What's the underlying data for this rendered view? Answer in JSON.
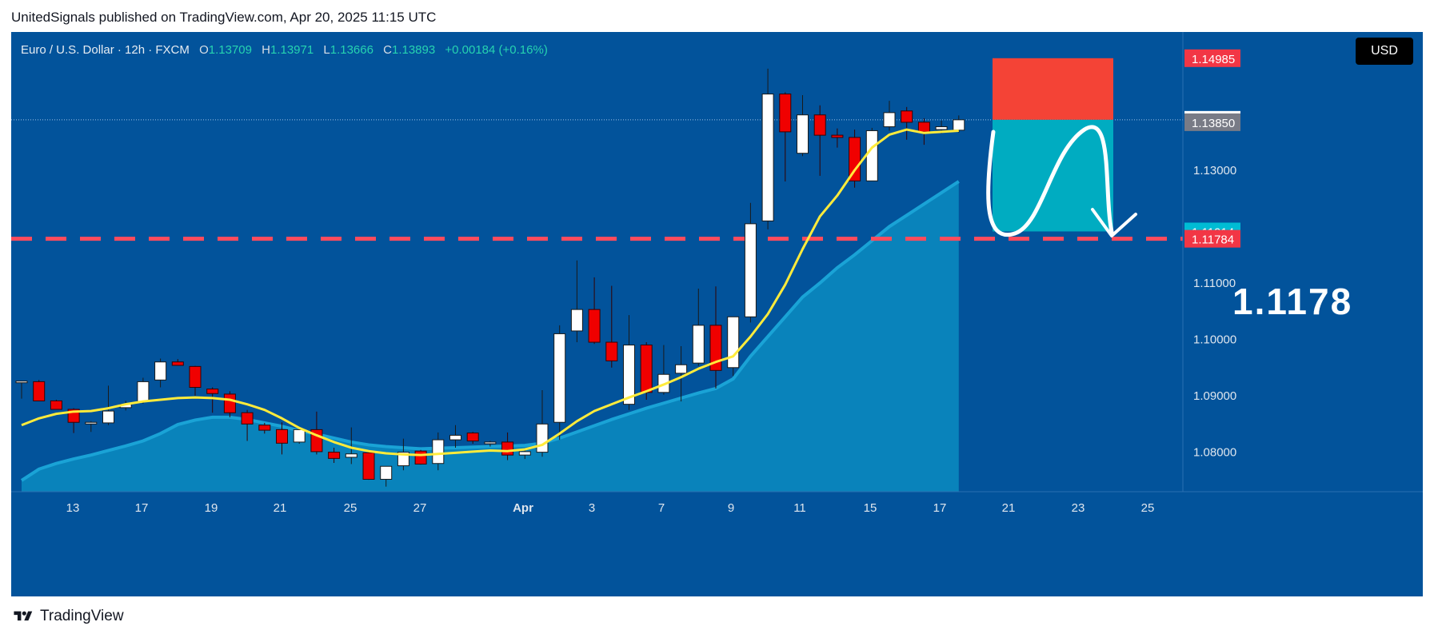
{
  "header": {
    "caption": "UnitedSignals published on TradingView.com, Apr 20, 2025 11:15 UTC"
  },
  "legend": {
    "symbol": "Euro / U.S. Dollar · 12h · FXCM",
    "open_label": "O",
    "open": "1.13709",
    "high_label": "H",
    "high": "1.13971",
    "low_label": "L",
    "low": "1.13666",
    "close_label": "C",
    "close": "1.13893",
    "change": "+0.00184 (+0.16%)"
  },
  "currency_button": "USD",
  "target_annotation": "1.1178",
  "footer": {
    "brand": "TradingView"
  },
  "colors": {
    "background": "#02539b",
    "up_candle": "#ffffff",
    "down_candle": "#f00000",
    "ma_line": "#ffeb3b",
    "area_fill": "#0a86bd",
    "stop_zone": "#f44336",
    "target_zone": "#00acc1",
    "support_line": "#ff4b5c"
  },
  "chart_data": {
    "type": "candlestick",
    "timeframe": "12h",
    "x_tick_labels": [
      "13",
      "17",
      "19",
      "21",
      "25",
      "27",
      "Apr",
      "3",
      "7",
      "9",
      "11",
      "15",
      "17",
      "21",
      "23",
      "25"
    ],
    "y_tick_labels": [
      "1.13000",
      "1.12000",
      "1.11000",
      "1.10000",
      "1.09000",
      "1.08000"
    ],
    "ylim": [
      1.073,
      1.1545
    ],
    "price_badges": [
      {
        "label": "1.14985",
        "value": 1.14985,
        "color": "#f23645"
      },
      {
        "label": "1.13893",
        "value": 1.13893,
        "color": "#ffffff"
      },
      {
        "label": "1.13850",
        "value": 1.1385,
        "color": "#787b86"
      },
      {
        "label": "1.11914",
        "value": 1.11914,
        "color": "#00bcd4"
      },
      {
        "label": "1.11784",
        "value": 1.11784,
        "color": "#f23645"
      }
    ],
    "current_price": 1.13893,
    "support_level": 1.11784,
    "stop_level": 1.14985,
    "target_level": 1.11914,
    "candles": [
      {
        "o": 1.0925,
        "h": 1.0926,
        "l": 1.0895,
        "c": 1.0926
      },
      {
        "o": 1.0925,
        "h": 1.0928,
        "l": 1.0893,
        "c": 1.0891
      },
      {
        "o": 1.0891,
        "h": 1.0893,
        "l": 1.0876,
        "c": 1.0876
      },
      {
        "o": 1.0876,
        "h": 1.0878,
        "l": 1.0834,
        "c": 1.0853
      },
      {
        "o": 1.0853,
        "h": 1.0855,
        "l": 1.0836,
        "c": 1.0853
      },
      {
        "o": 1.0852,
        "h": 1.0918,
        "l": 1.0848,
        "c": 1.0873
      },
      {
        "o": 1.0879,
        "h": 1.0891,
        "l": 1.0874,
        "c": 1.0885
      },
      {
        "o": 1.089,
        "h": 1.0932,
        "l": 1.0886,
        "c": 1.0925
      },
      {
        "o": 1.0928,
        "h": 1.0966,
        "l": 1.0915,
        "c": 1.096
      },
      {
        "o": 1.096,
        "h": 1.0965,
        "l": 1.0954,
        "c": 1.0954
      },
      {
        "o": 1.0952,
        "h": 1.0953,
        "l": 1.09,
        "c": 1.0915
      },
      {
        "o": 1.0912,
        "h": 1.0915,
        "l": 1.087,
        "c": 1.0904
      },
      {
        "o": 1.0903,
        "h": 1.0908,
        "l": 1.0862,
        "c": 1.087
      },
      {
        "o": 1.087,
        "h": 1.0875,
        "l": 1.082,
        "c": 1.085
      },
      {
        "o": 1.0848,
        "h": 1.0852,
        "l": 1.0833,
        "c": 1.0839
      },
      {
        "o": 1.084,
        "h": 1.0853,
        "l": 1.0796,
        "c": 1.0816
      },
      {
        "o": 1.0818,
        "h": 1.084,
        "l": 1.0815,
        "c": 1.084
      },
      {
        "o": 1.084,
        "h": 1.0872,
        "l": 1.0796,
        "c": 1.0801
      },
      {
        "o": 1.08,
        "h": 1.0808,
        "l": 1.0781,
        "c": 1.0789
      },
      {
        "o": 1.0791,
        "h": 1.0844,
        "l": 1.0779,
        "c": 1.0797
      },
      {
        "o": 1.0799,
        "h": 1.0801,
        "l": 1.0751,
        "c": 1.0752
      },
      {
        "o": 1.0752,
        "h": 1.0775,
        "l": 1.0739,
        "c": 1.0775
      },
      {
        "o": 1.0776,
        "h": 1.0824,
        "l": 1.0768,
        "c": 1.08
      },
      {
        "o": 1.0802,
        "h": 1.0804,
        "l": 1.0778,
        "c": 1.0779
      },
      {
        "o": 1.078,
        "h": 1.0835,
        "l": 1.0768,
        "c": 1.0822
      },
      {
        "o": 1.0822,
        "h": 1.0848,
        "l": 1.0808,
        "c": 1.083
      },
      {
        "o": 1.0834,
        "h": 1.0836,
        "l": 1.0815,
        "c": 1.082
      },
      {
        "o": 1.0815,
        "h": 1.082,
        "l": 1.081,
        "c": 1.0818
      },
      {
        "o": 1.0818,
        "h": 1.0835,
        "l": 1.0786,
        "c": 1.0795
      },
      {
        "o": 1.0795,
        "h": 1.0804,
        "l": 1.0788,
        "c": 1.0801
      },
      {
        "o": 1.08,
        "h": 1.091,
        "l": 1.0792,
        "c": 1.085
      },
      {
        "o": 1.0853,
        "h": 1.1025,
        "l": 1.0822,
        "c": 1.101
      },
      {
        "o": 1.1015,
        "h": 1.114,
        "l": 1.0995,
        "c": 1.1053
      },
      {
        "o": 1.1053,
        "h": 1.111,
        "l": 1.0992,
        "c": 1.0995
      },
      {
        "o": 1.0995,
        "h": 1.1095,
        "l": 1.095,
        "c": 1.0962
      },
      {
        "o": 1.0885,
        "h": 1.1043,
        "l": 1.0875,
        "c": 1.099
      },
      {
        "o": 1.099,
        "h": 1.0995,
        "l": 1.0893,
        "c": 1.0906
      },
      {
        "o": 1.0906,
        "h": 1.099,
        "l": 1.0902,
        "c": 1.0938
      },
      {
        "o": 1.094,
        "h": 1.0988,
        "l": 1.089,
        "c": 1.0955
      },
      {
        "o": 1.0958,
        "h": 1.109,
        "l": 1.0953,
        "c": 1.1025
      },
      {
        "o": 1.1025,
        "h": 1.1094,
        "l": 1.0913,
        "c": 1.0945
      },
      {
        "o": 1.095,
        "h": 1.104,
        "l": 1.0935,
        "c": 1.104
      },
      {
        "o": 1.104,
        "h": 1.1242,
        "l": 1.103,
        "c": 1.1205
      },
      {
        "o": 1.121,
        "h": 1.148,
        "l": 1.1195,
        "c": 1.1435
      },
      {
        "o": 1.1435,
        "h": 1.1438,
        "l": 1.128,
        "c": 1.1368
      },
      {
        "o": 1.133,
        "h": 1.1433,
        "l": 1.1325,
        "c": 1.1398
      },
      {
        "o": 1.1398,
        "h": 1.1415,
        "l": 1.129,
        "c": 1.1362
      },
      {
        "o": 1.1362,
        "h": 1.1374,
        "l": 1.134,
        "c": 1.1358
      },
      {
        "o": 1.1358,
        "h": 1.1372,
        "l": 1.1269,
        "c": 1.1281
      },
      {
        "o": 1.1281,
        "h": 1.1375,
        "l": 1.1281,
        "c": 1.137
      },
      {
        "o": 1.1377,
        "h": 1.1423,
        "l": 1.137,
        "c": 1.1402
      },
      {
        "o": 1.1405,
        "h": 1.1412,
        "l": 1.1354,
        "c": 1.1385
      },
      {
        "o": 1.1385,
        "h": 1.1392,
        "l": 1.1345,
        "c": 1.1368
      },
      {
        "o": 1.1372,
        "h": 1.1388,
        "l": 1.1365,
        "c": 1.1377
      },
      {
        "o": 1.13709,
        "h": 1.13971,
        "l": 1.13666,
        "c": 1.13893
      }
    ],
    "ma_line": [
      1.0848,
      1.086,
      1.0868,
      1.0872,
      1.0873,
      1.0878,
      1.0885,
      1.089,
      1.0893,
      1.0896,
      1.0897,
      1.0896,
      1.0893,
      1.0885,
      1.0875,
      1.086,
      1.0843,
      1.083,
      1.0818,
      1.0808,
      1.0802,
      1.0798,
      1.0796,
      1.0795,
      1.0797,
      1.0799,
      1.0801,
      1.0803,
      1.0802,
      1.0805,
      1.0813,
      1.0833,
      1.0855,
      1.0873,
      1.0885,
      1.0897,
      1.0908,
      1.092,
      1.0933,
      1.0948,
      1.096,
      1.097,
      1.1005,
      1.1045,
      1.1097,
      1.116,
      1.1218,
      1.1255,
      1.13,
      1.134,
      1.1363,
      1.1372,
      1.1366,
      1.1368,
      1.137
    ],
    "area_line": [
      1.075,
      1.077,
      1.078,
      1.0788,
      1.0795,
      1.0803,
      1.0811,
      1.082,
      1.0833,
      1.0849,
      1.0857,
      1.0862,
      1.0862,
      1.0858,
      1.0852,
      1.0846,
      1.0838,
      1.0832,
      1.0825,
      1.0818,
      1.0813,
      1.081,
      1.0808,
      1.0806,
      1.0807,
      1.0808,
      1.0809,
      1.081,
      1.0811,
      1.0812,
      1.0816,
      1.0825,
      1.0836,
      1.0847,
      1.0858,
      1.0868,
      1.0878,
      1.0887,
      1.0896,
      1.0905,
      1.0913,
      1.093,
      1.097,
      1.1005,
      1.104,
      1.1075,
      1.11,
      1.1127,
      1.115,
      1.1175,
      1.12,
      1.122,
      1.124,
      1.126,
      1.128
    ]
  }
}
